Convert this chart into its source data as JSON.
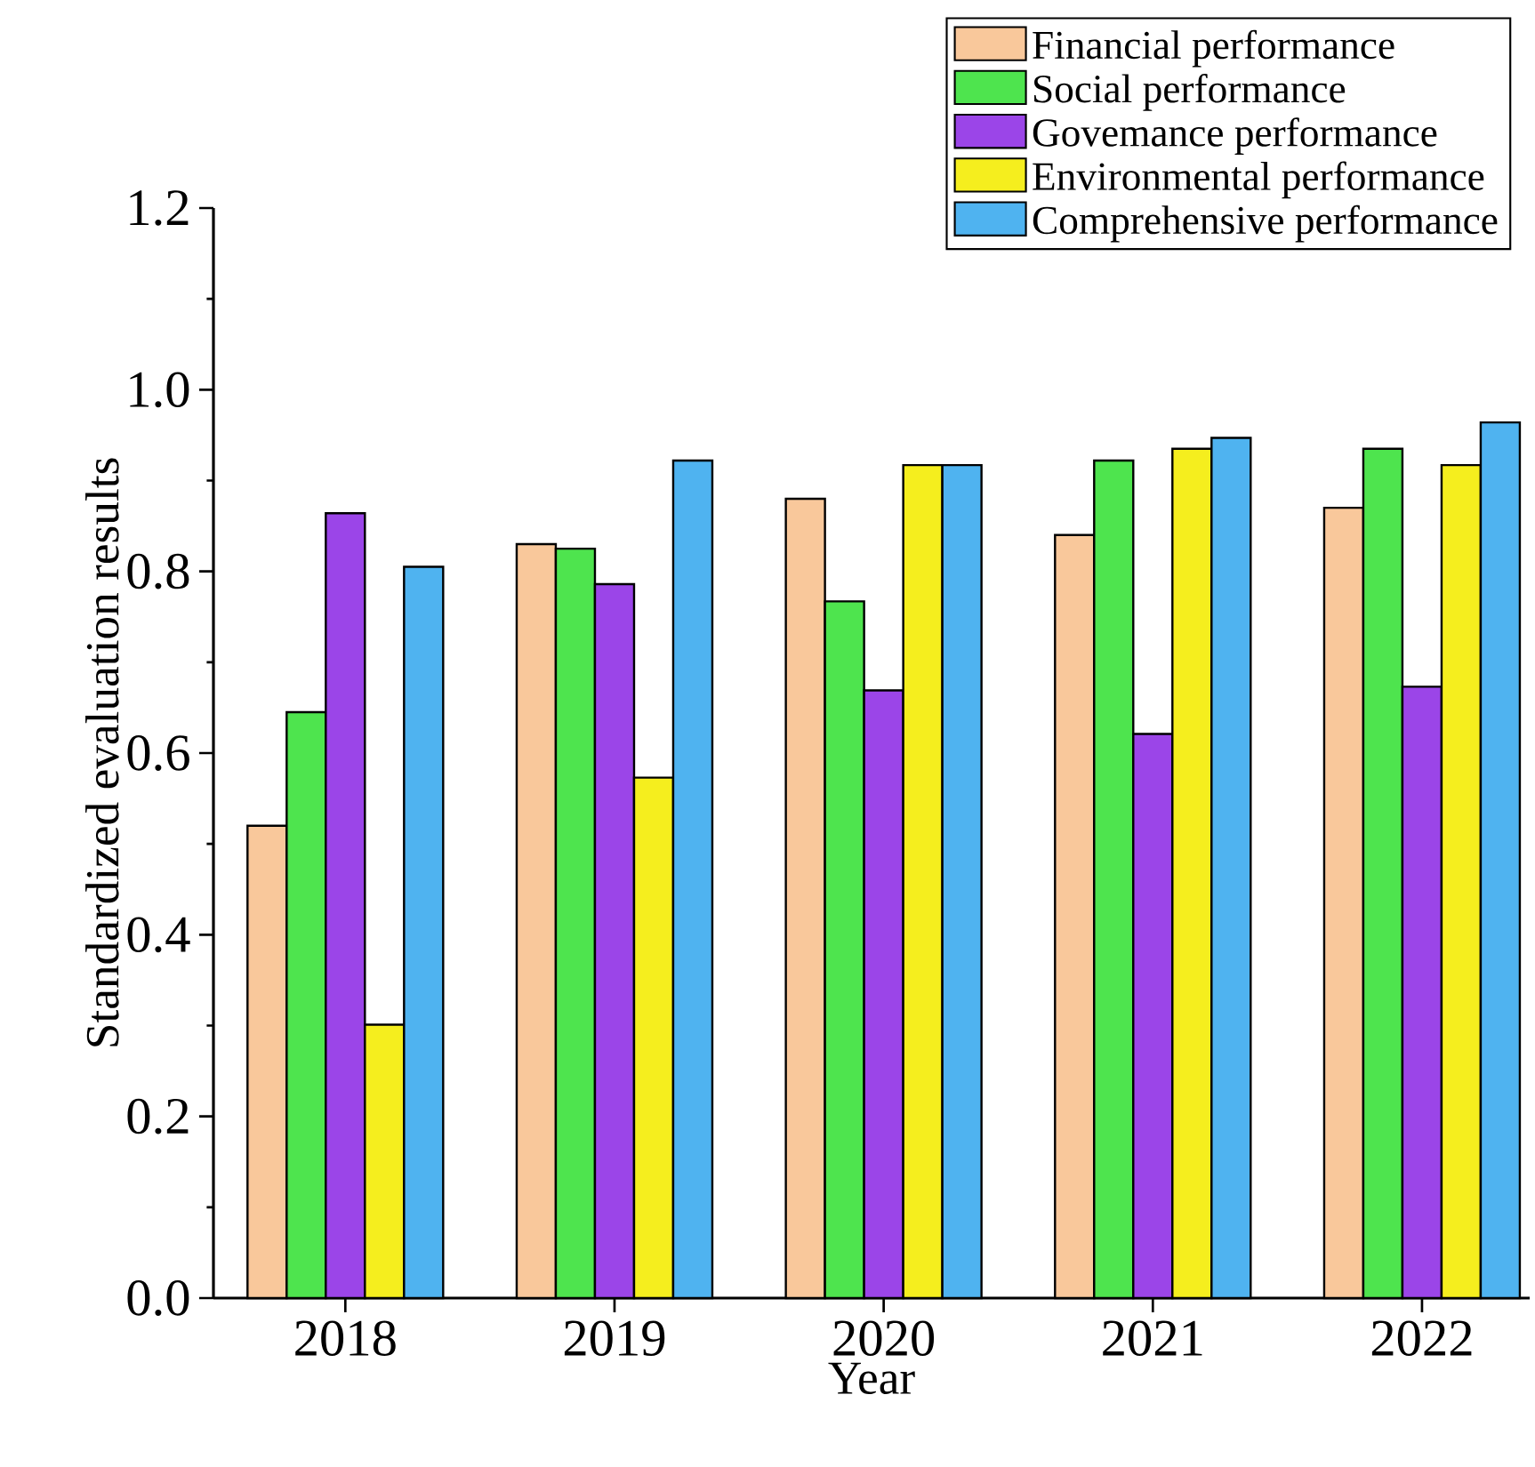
{
  "chart_data": {
    "type": "bar",
    "xlabel": "Year",
    "ylabel": "Standardized evaluation results",
    "categories": [
      "2018",
      "2019",
      "2020",
      "2021",
      "2022"
    ],
    "series": [
      {
        "name": "Financial performance",
        "color": "#f9c89b",
        "values": [
          0.52,
          0.83,
          0.88,
          0.84,
          0.87
        ]
      },
      {
        "name": "Social performance",
        "color": "#4ee44e",
        "values": [
          0.645,
          0.825,
          0.767,
          0.922,
          0.935
        ]
      },
      {
        "name": "Govemance performance",
        "color": "#9b45e8",
        "values": [
          0.864,
          0.786,
          0.669,
          0.621,
          0.673
        ]
      },
      {
        "name": "Environmental performance",
        "color": "#f5ee1e",
        "values": [
          0.301,
          0.573,
          0.917,
          0.935,
          0.917
        ]
      },
      {
        "name": "Comprehensive performance",
        "color": "#4fb3f0",
        "values": [
          0.805,
          0.922,
          0.917,
          0.947,
          0.964
        ]
      }
    ],
    "ylim": [
      0,
      1.2
    ],
    "yticks": [
      {
        "value": 0,
        "label": "0.0"
      },
      0.2,
      0.4,
      0.6,
      0.8,
      {
        "value": 1.0,
        "label": "1.0"
      },
      1.2
    ],
    "legend": "top right",
    "grid": false
  }
}
